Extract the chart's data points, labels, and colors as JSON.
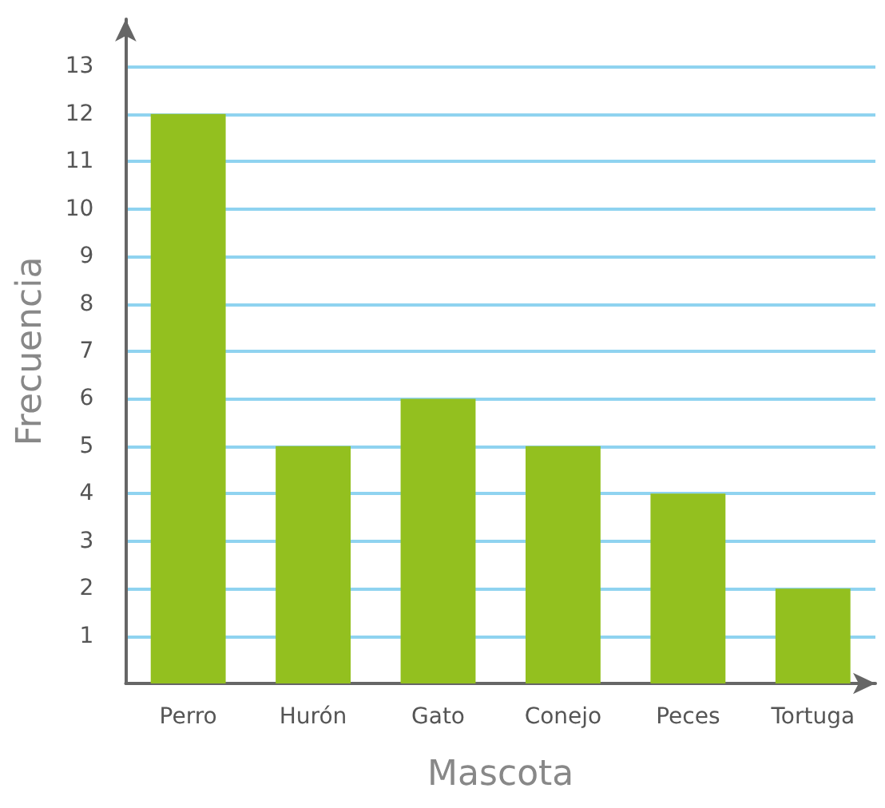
{
  "chart_data": {
    "type": "bar",
    "xlabel": "Mascota",
    "ylabel": "Frecuencia",
    "categories": [
      "Perro",
      "Hurón",
      "Gato",
      "Conejo",
      "Peces",
      "Tortuga"
    ],
    "values": [
      12,
      5,
      6,
      5,
      4,
      2
    ],
    "color": "#93c01f",
    "ylim": [
      0,
      14
    ],
    "yticks": [
      1,
      2,
      3,
      4,
      5,
      6,
      7,
      8,
      9,
      10,
      11,
      12,
      13
    ],
    "grid": "y"
  }
}
